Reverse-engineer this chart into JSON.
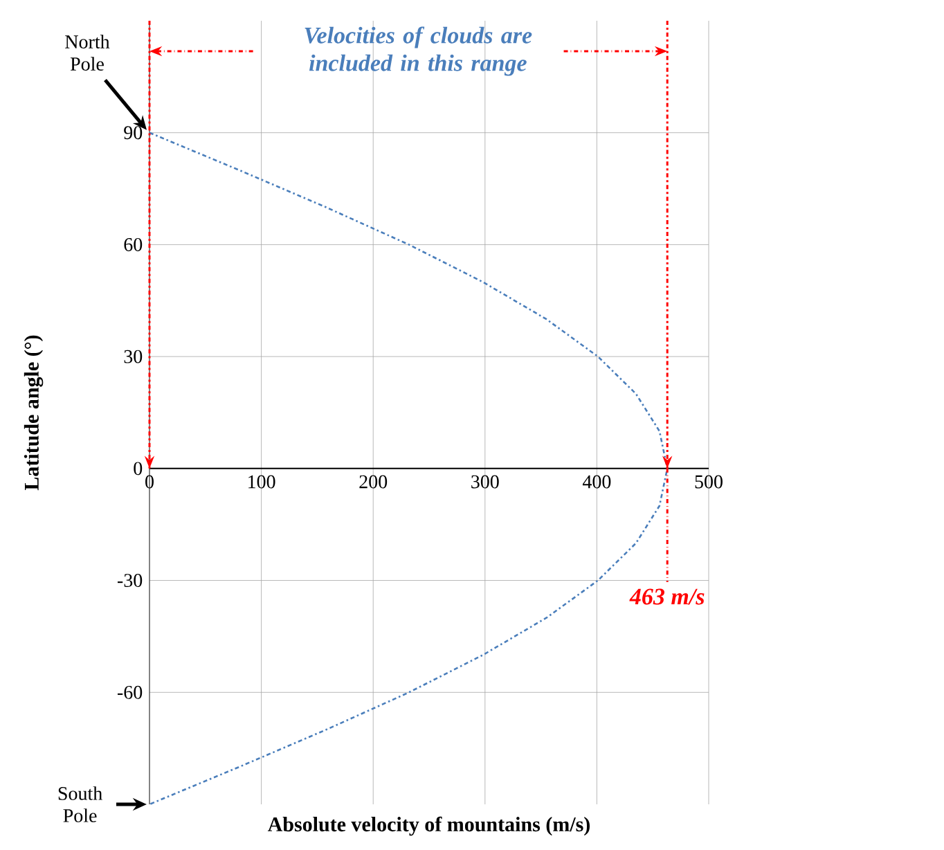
{
  "chart_data": {
    "type": "line",
    "xlabel": "Absolute velocity of mountains (m/s)",
    "ylabel": "Latitude angle (°)",
    "xlim": [
      0,
      500
    ],
    "xticks": [
      0,
      100,
      200,
      300,
      400,
      500
    ],
    "ylim": [
      -90,
      120
    ],
    "yticks": [
      -60,
      -30,
      0,
      30,
      60,
      90
    ],
    "grid": true,
    "marker": "none",
    "line_style": "dashed",
    "series": [
      {
        "color": "#4a7ebb",
        "x": [
          0,
          80,
          158,
          232,
          298,
          355,
          401,
          435,
          456,
          463,
          456,
          435,
          401,
          355,
          298,
          232,
          158,
          80,
          0
        ],
        "values": [
          90,
          80,
          70,
          60,
          50,
          40,
          30,
          20,
          10,
          0,
          -10,
          -20,
          -30,
          -40,
          -50,
          -60,
          -70,
          -80,
          -90
        ]
      }
    ],
    "ref_lines": [
      {
        "axis": "x",
        "value": 0,
        "color": "#ff0000",
        "line_style": "dashed"
      },
      {
        "axis": "x",
        "value": 463,
        "label": "463 m/s",
        "color": "#ff0000",
        "line_style": "dashed"
      }
    ],
    "annotations": [
      "Velocities of clouds are included in this range",
      {
        "text": "North Pole",
        "x": 0,
        "y": 90
      },
      {
        "text": "South Pole",
        "x": 0,
        "y": -90
      }
    ]
  }
}
